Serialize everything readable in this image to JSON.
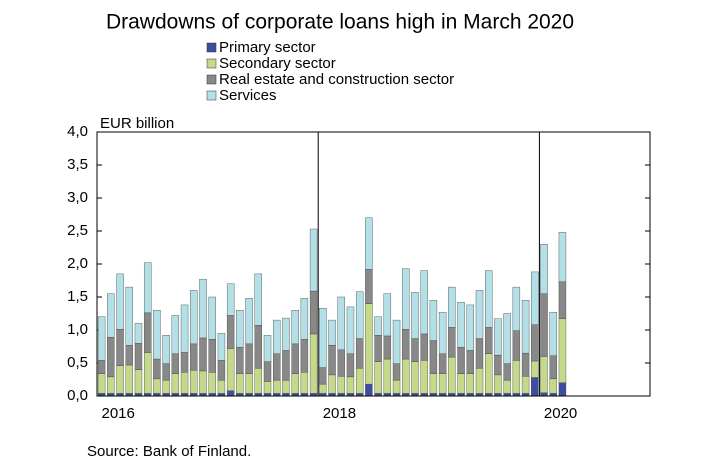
{
  "chart_data": {
    "type": "stacked_bar",
    "title": "Drawdowns of corporate loans high in March 2020",
    "y_axis_label": "EUR billion",
    "source": "Source: Bank of Finland.",
    "categories": [
      "2016",
      null,
      null,
      null,
      null,
      null,
      null,
      null,
      null,
      null,
      null,
      null,
      null,
      null,
      null,
      null,
      null,
      null,
      null,
      null,
      null,
      null,
      null,
      null,
      "2018",
      null,
      null,
      null,
      null,
      null,
      null,
      null,
      null,
      null,
      null,
      null,
      null,
      null,
      null,
      null,
      null,
      null,
      null,
      null,
      null,
      null,
      null,
      null,
      "2020",
      null,
      null
    ],
    "series": [
      {
        "name": "Primary sector",
        "color": "#3c4ea0",
        "values": [
          0.04,
          0.04,
          0.04,
          0.04,
          0.04,
          0.04,
          0.04,
          0.04,
          0.04,
          0.04,
          0.04,
          0.04,
          0.04,
          0.04,
          0.08,
          0.04,
          0.04,
          0.04,
          0.04,
          0.04,
          0.04,
          0.04,
          0.04,
          0.04,
          0.04,
          0.04,
          0.04,
          0.04,
          0.04,
          0.18,
          0.04,
          0.04,
          0.04,
          0.04,
          0.04,
          0.04,
          0.04,
          0.04,
          0.04,
          0.04,
          0.04,
          0.04,
          0.04,
          0.04,
          0.04,
          0.04,
          0.04,
          0.28,
          0.05,
          0.04,
          0.2
        ]
      },
      {
        "name": "Secondary sector",
        "color": "#c5d98a",
        "values": [
          0.3,
          0.25,
          0.42,
          0.43,
          0.36,
          0.62,
          0.22,
          0.2,
          0.3,
          0.32,
          0.35,
          0.34,
          0.32,
          0.2,
          0.64,
          0.3,
          0.3,
          0.38,
          0.18,
          0.2,
          0.2,
          0.3,
          0.32,
          0.9,
          0.14,
          0.28,
          0.26,
          0.25,
          0.38,
          1.22,
          0.48,
          0.52,
          0.2,
          0.52,
          0.48,
          0.5,
          0.3,
          0.3,
          0.55,
          0.3,
          0.3,
          0.38,
          0.6,
          0.28,
          0.2,
          0.5,
          0.26,
          0.25,
          0.55,
          0.22,
          0.97
        ]
      },
      {
        "name": "Real estate and construction sector",
        "color": "#888888",
        "values": [
          0.2,
          0.6,
          0.55,
          0.3,
          0.4,
          0.6,
          0.3,
          0.25,
          0.3,
          0.3,
          0.4,
          0.5,
          0.5,
          0.3,
          0.5,
          0.4,
          0.45,
          0.65,
          0.3,
          0.4,
          0.45,
          0.45,
          0.5,
          0.65,
          0.25,
          0.45,
          0.4,
          0.35,
          0.45,
          0.52,
          0.4,
          0.35,
          0.25,
          0.45,
          0.35,
          0.4,
          0.5,
          0.3,
          0.45,
          0.4,
          0.35,
          0.45,
          0.4,
          0.3,
          0.25,
          0.45,
          0.35,
          0.55,
          0.95,
          0.35,
          0.56
        ]
      },
      {
        "name": "Services",
        "color": "#b3e0e6",
        "values": [
          0.66,
          0.66,
          0.84,
          0.88,
          0.3,
          0.76,
          0.74,
          0.43,
          0.58,
          0.72,
          0.81,
          0.89,
          0.64,
          0.41,
          0.48,
          0.56,
          0.69,
          0.78,
          0.4,
          0.51,
          0.49,
          0.51,
          0.62,
          0.94,
          0.9,
          0.38,
          0.8,
          0.71,
          0.71,
          0.78,
          0.28,
          0.64,
          0.66,
          0.92,
          0.7,
          0.96,
          0.61,
          0.63,
          0.61,
          0.68,
          0.69,
          0.73,
          0.86,
          0.55,
          0.76,
          0.66,
          0.8,
          0.8,
          0.75,
          0.66,
          0.75
        ]
      }
    ],
    "ylim": [
      0,
      4
    ],
    "yticks": [
      {
        "value": 0,
        "label": "0,0"
      },
      {
        "value": 0.5,
        "label": "0,5"
      },
      {
        "value": 1,
        "label": "1,0"
      },
      {
        "value": 1.5,
        "label": "1,5"
      },
      {
        "value": 2,
        "label": "2,0"
      },
      {
        "value": 2.5,
        "label": "2,5"
      },
      {
        "value": 3,
        "label": "3,0"
      },
      {
        "value": 3.5,
        "label": "3,5"
      },
      {
        "value": 4,
        "label": "4,0"
      }
    ],
    "legend": "top"
  }
}
